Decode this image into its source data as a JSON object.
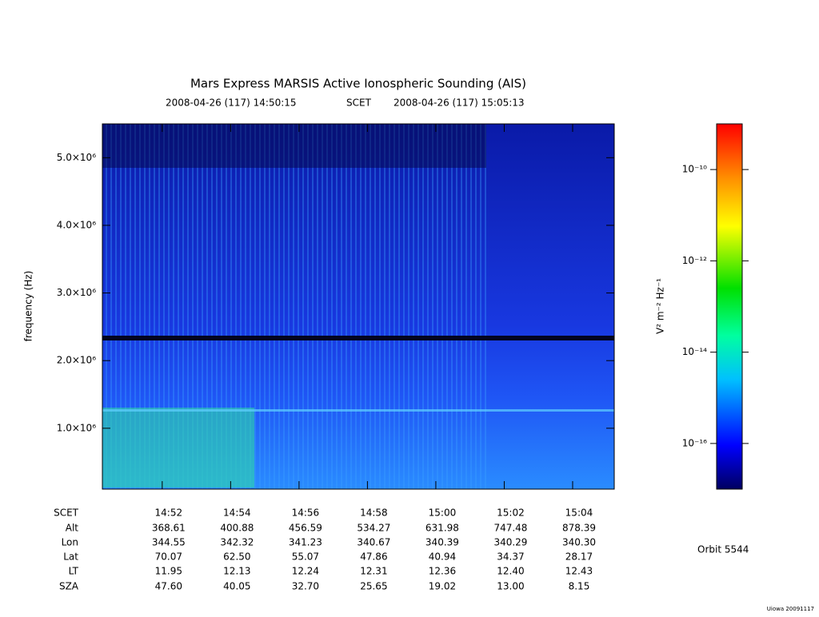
{
  "chart_data": {
    "type": "spectrogram",
    "title": "Mars Express MARSIS Active Ionospheric Sounding (AIS)",
    "start_label": "2008-04-26 (117) 14:50:15",
    "time_system": "SCET",
    "end_label": "2008-04-26 (117) 15:05:13",
    "ylabel": "frequency (Hz)",
    "ylim": [
      100000,
      5500000
    ],
    "yticks": [
      {
        "value": 1000000,
        "label": "1.0×10⁶"
      },
      {
        "value": 2000000,
        "label": "2.0×10⁶"
      },
      {
        "value": 3000000,
        "label": "3.0×10⁶"
      },
      {
        "value": 4000000,
        "label": "4.0×10⁶"
      },
      {
        "value": 5000000,
        "label": "5.0×10⁶"
      }
    ],
    "xlim": [
      "14:50:15",
      "15:05:13"
    ],
    "xticks": [
      "14:52",
      "14:54",
      "14:56",
      "14:58",
      "15:00",
      "15:02",
      "15:04"
    ],
    "colorbar": {
      "label": "V² m⁻² Hz⁻¹",
      "log": true,
      "zlim": [
        1e-17,
        1e-09
      ],
      "ticks": [
        {
          "value": 1e-10,
          "label": "10⁻¹⁰"
        },
        {
          "value": 1e-12,
          "label": "10⁻¹²"
        },
        {
          "value": 1e-14,
          "label": "10⁻¹⁴"
        },
        {
          "value": 1e-16,
          "label": "10⁻¹⁶"
        }
      ]
    },
    "ephemeris": [
      {
        "name": "SCET",
        "values": null
      },
      {
        "name": "Alt",
        "values": [
          "368.61",
          "400.88",
          "456.59",
          "534.27",
          "631.98",
          "747.48",
          "878.39"
        ]
      },
      {
        "name": "Lon",
        "values": [
          "344.55",
          "342.32",
          "341.23",
          "340.67",
          "340.39",
          "340.29",
          "340.30"
        ]
      },
      {
        "name": "Lat",
        "values": [
          "70.07",
          "62.50",
          "55.07",
          "47.86",
          "40.94",
          "34.37",
          "28.17"
        ]
      },
      {
        "name": "LT",
        "values": [
          "11.95",
          "12.13",
          "12.24",
          "12.31",
          "12.36",
          "12.40",
          "12.43"
        ]
      },
      {
        "name": "SZA",
        "values": [
          "47.60",
          "40.05",
          "32.70",
          "25.65",
          "19.02",
          "13.00",
          "8.15"
        ]
      }
    ],
    "orbit": "Orbit 5544",
    "credit": "Uiowa 20091117"
  }
}
